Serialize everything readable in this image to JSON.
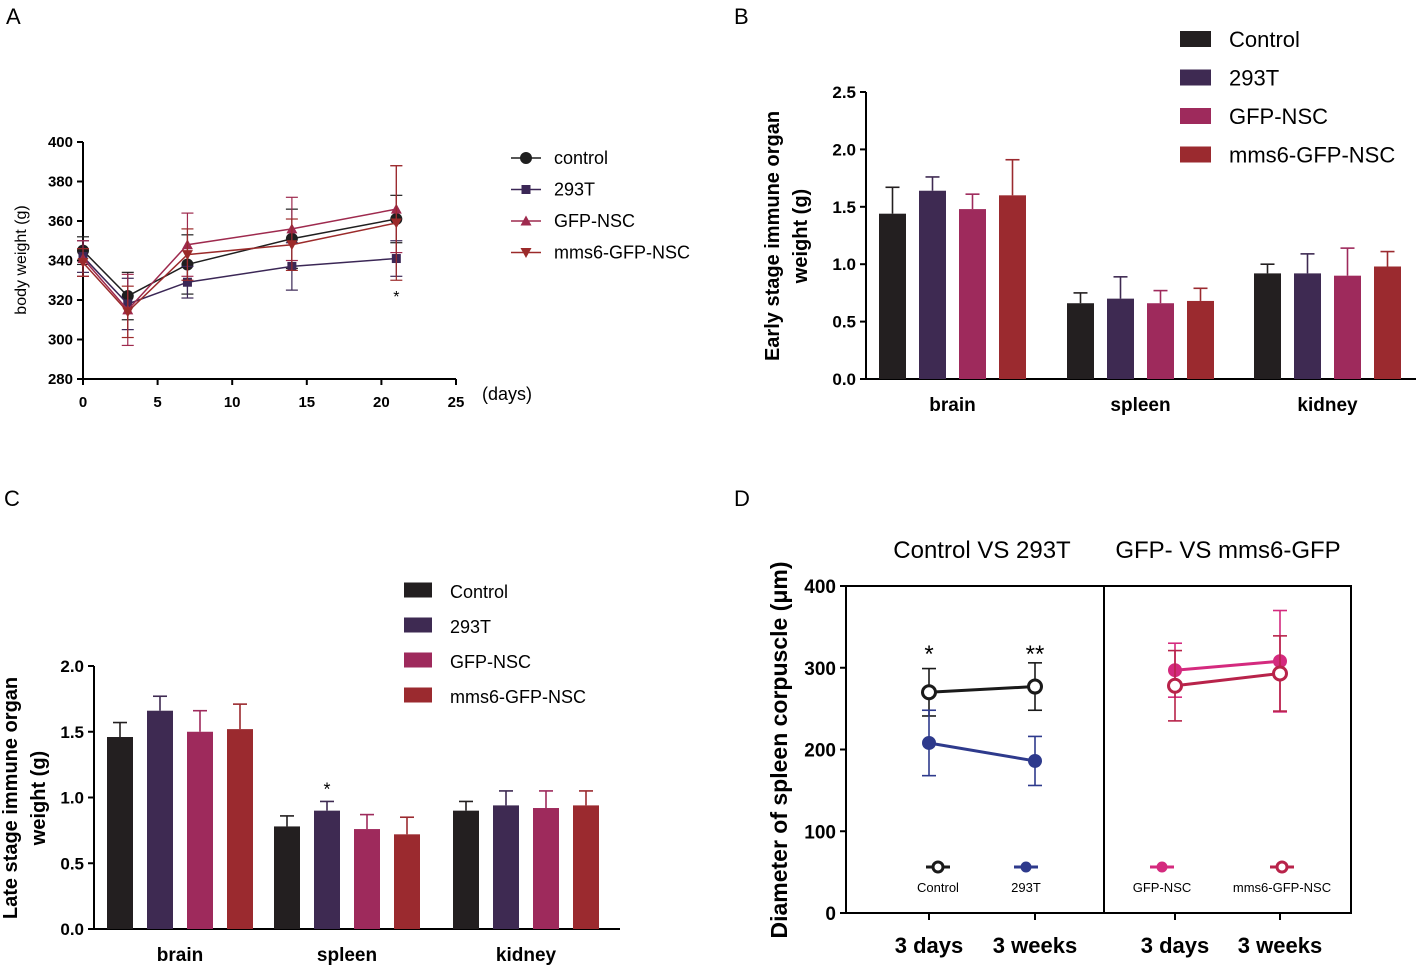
{
  "panel_labels": [
    "A",
    "B",
    "C",
    "D"
  ],
  "chart_data": [
    {
      "panel": "A",
      "type": "line",
      "xlabel": "(days)",
      "ylabel": "body weight (g)",
      "xlim": [
        0,
        25
      ],
      "ylim": [
        280,
        400
      ],
      "xticks": [
        0,
        5,
        10,
        15,
        20,
        25
      ],
      "yticks": [
        280,
        300,
        320,
        340,
        360,
        380,
        400
      ],
      "x": [
        0,
        3,
        7,
        14,
        21
      ],
      "series": [
        {
          "name": "control",
          "color": "#1f1f1f",
          "marker": "circle",
          "values": [
            345,
            322,
            338,
            351,
            361
          ],
          "err": [
            7,
            12,
            15,
            15,
            12
          ]
        },
        {
          "name": "293T",
          "color": "#3b2756",
          "marker": "square",
          "values": [
            342,
            318,
            329,
            337,
            341
          ],
          "err": [
            8,
            13,
            8,
            12,
            9
          ]
        },
        {
          "name": "GFP-NSC",
          "color": "#9e2a4e",
          "marker": "triangle-up",
          "values": [
            341,
            315,
            348,
            356,
            366
          ],
          "err": [
            9,
            18,
            16,
            16,
            22
          ]
        },
        {
          "name": "mms6-GFP-NSC",
          "color": "#9b2a2a",
          "marker": "triangle-down",
          "values": [
            339,
            314,
            343,
            348,
            359
          ],
          "err": [
            7,
            13,
            13,
            13,
            29
          ]
        }
      ],
      "annotations": [
        {
          "text": "*",
          "x": 21
        }
      ]
    },
    {
      "panel": "B",
      "type": "bar",
      "ylabel": "Early stage immune organ weight (g)",
      "ylabel_lines": [
        "Early stage immune organ",
        "weight (g)"
      ],
      "ylim": [
        0,
        2.5
      ],
      "yticks": [
        "0.0",
        "0.5",
        "1.0",
        "1.5",
        "2.0",
        "2.5"
      ],
      "categories": [
        "brain",
        "spleen",
        "kidney"
      ],
      "series": [
        {
          "name": "Control",
          "color": "#231f20",
          "values": [
            1.44,
            0.66,
            0.92
          ],
          "err": [
            0.23,
            0.09,
            0.08
          ]
        },
        {
          "name": "293T",
          "color": "#3e2a52",
          "values": [
            1.64,
            0.7,
            0.92
          ],
          "err": [
            0.12,
            0.19,
            0.17
          ]
        },
        {
          "name": "GFP-NSC",
          "color": "#9e2a5c",
          "values": [
            1.48,
            0.66,
            0.9
          ],
          "err": [
            0.13,
            0.11,
            0.24
          ]
        },
        {
          "name": "mms6-GFP-NSC",
          "color": "#9b2a2f",
          "values": [
            1.6,
            0.68,
            0.98
          ],
          "err": [
            0.31,
            0.11,
            0.13
          ]
        }
      ]
    },
    {
      "panel": "C",
      "type": "bar",
      "ylabel": "Late stage immune organ weight (g)",
      "ylabel_lines": [
        "Late stage immune organ",
        "weight (g)"
      ],
      "ylim": [
        0,
        2.0
      ],
      "yticks": [
        "0.0",
        "0.5",
        "1.0",
        "1.5",
        "2.0"
      ],
      "categories": [
        "brain",
        "spleen",
        "kidney"
      ],
      "series": [
        {
          "name": "Control",
          "color": "#231f20",
          "values": [
            1.46,
            0.78,
            0.9
          ],
          "err": [
            0.11,
            0.08,
            0.07
          ]
        },
        {
          "name": "293T",
          "color": "#3e2a52",
          "values": [
            1.66,
            0.9,
            0.94
          ],
          "err": [
            0.11,
            0.07,
            0.11
          ]
        },
        {
          "name": "GFP-NSC",
          "color": "#9e2a5c",
          "values": [
            1.5,
            0.76,
            0.92
          ],
          "err": [
            0.16,
            0.11,
            0.13
          ]
        },
        {
          "name": "mms6-GFP-NSC",
          "color": "#9b2a2f",
          "values": [
            1.52,
            0.72,
            0.94
          ],
          "err": [
            0.19,
            0.13,
            0.11
          ]
        }
      ],
      "annotations": [
        {
          "text": "*",
          "category": "spleen",
          "series": "293T"
        }
      ]
    },
    {
      "panel": "D",
      "type": "line",
      "ylabel": "Diameter of spleen corpuscle (μm)",
      "ylim": [
        0,
        400
      ],
      "yticks": [
        0,
        100,
        200,
        300,
        400
      ],
      "subpanels": [
        {
          "title": "Control VS 293T",
          "categories": [
            "3 days",
            "3 weeks"
          ],
          "series": [
            {
              "name": "Control",
              "color": "#1a1a1a",
              "marker": "open-circle",
              "values": [
                270,
                277
              ],
              "err": [
                29,
                29
              ]
            },
            {
              "name": "293T",
              "color": "#2e3a8c",
              "marker": "filled-circle",
              "values": [
                208,
                186
              ],
              "err": [
                40,
                30
              ]
            }
          ],
          "annotations": [
            {
              "text": "*",
              "category": "3 days"
            },
            {
              "text": "**",
              "category": "3 weeks"
            }
          ]
        },
        {
          "title": "GFP- VS mms6-GFP",
          "categories": [
            "3 days",
            "3 weeks"
          ],
          "series": [
            {
              "name": "GFP-NSC",
              "color": "#d42a7e",
              "marker": "filled-circle",
              "values": [
                297,
                308
              ],
              "err": [
                33,
                62
              ]
            },
            {
              "name": "mms6-GFP-NSC",
              "color": "#b8234a",
              "marker": "open-circle",
              "values": [
                278,
                293
              ],
              "err": [
                43,
                46
              ]
            }
          ]
        }
      ]
    }
  ]
}
